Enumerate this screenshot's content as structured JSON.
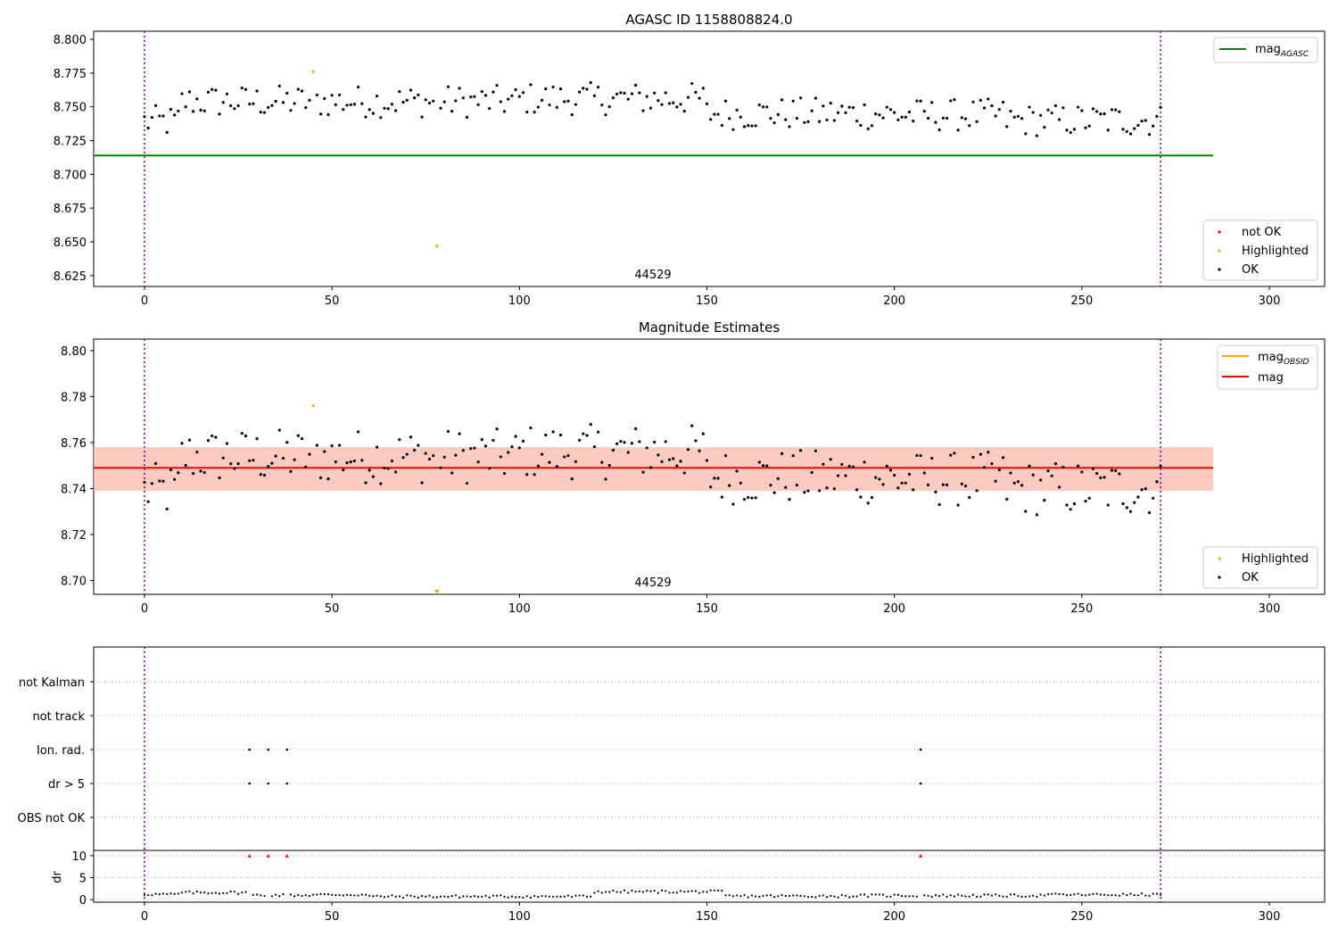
{
  "figure": {
    "panel1_title": "AGASC ID 1158808824.0",
    "panel2_title": "Magnitude Estimates",
    "obsid_label": "44529",
    "vline_left": 0,
    "vline_right": 271
  },
  "legends": {
    "mag_agasc_base": "mag",
    "mag_agasc_sub": "AGASC",
    "mag_obsid_base": "mag",
    "mag_obsid_sub": "OBSID",
    "mag": "mag",
    "not_ok": "not OK",
    "highlighted": "Highlighted",
    "ok": "OK"
  },
  "colors": {
    "agasc_line": "#008000",
    "mag_line": "#ff0000",
    "obsid_line": "#ffa500",
    "band": "#f4a582",
    "highlight": "#ffa500",
    "not_ok": "#ff0000",
    "ok": "#000000",
    "vline": "#800080"
  },
  "chart_data": [
    {
      "type": "scatter",
      "title": "AGASC ID 1158808824.0",
      "xlim": [
        -13.5,
        314
      ],
      "ylim": [
        8.617,
        8.806
      ],
      "xticks": [
        0,
        50,
        100,
        150,
        200,
        250,
        300
      ],
      "yticks": [
        "8.625",
        "8.650",
        "8.675",
        "8.700",
        "8.725",
        "8.750",
        "8.775",
        "8.800"
      ],
      "mag_agasc": 8.714,
      "line_x_range": [
        -13.5,
        285
      ],
      "highlighted_points": [
        [
          45,
          8.776
        ],
        [
          78,
          8.647
        ]
      ],
      "legend": [
        "mag_AGASC",
        "not OK",
        "Highlighted",
        "OK"
      ]
    },
    {
      "type": "scatter",
      "title": "Magnitude Estimates",
      "xlim": [
        -13.5,
        314
      ],
      "ylim": [
        8.694,
        8.805
      ],
      "xticks": [
        0,
        50,
        100,
        150,
        200,
        250,
        300
      ],
      "yticks": [
        "8.70",
        "8.72",
        "8.74",
        "8.76",
        "8.78",
        "8.80"
      ],
      "mag": 8.749,
      "mag_band": [
        8.739,
        8.758
      ],
      "highlighted_points": [
        [
          45,
          8.776
        ]
      ],
      "highlighted_below_axis": [
        [
          78
        ]
      ],
      "legend": [
        "mag_OBSID",
        "mag",
        "Highlighted",
        "OK"
      ]
    },
    {
      "type": "scatter",
      "title": "",
      "xlim": [
        -13.5,
        314
      ],
      "xticks": [
        0,
        50,
        100,
        150,
        200,
        250,
        300
      ],
      "categories": [
        "not Kalman",
        "not track",
        "Ion. rad.",
        "dr > 5",
        "OBS not OK"
      ],
      "flags": {
        "Ion. rad.": [
          28,
          33,
          38,
          207
        ],
        "dr > 5": [
          28,
          33,
          38,
          207
        ]
      },
      "dr_ylabel": "dr",
      "dr_yticks": [
        "0",
        "5",
        "10"
      ],
      "dr_ylim": [
        -0.6,
        11.2
      ],
      "dr_clipped_points": [
        28,
        33,
        38,
        207
      ]
    }
  ]
}
